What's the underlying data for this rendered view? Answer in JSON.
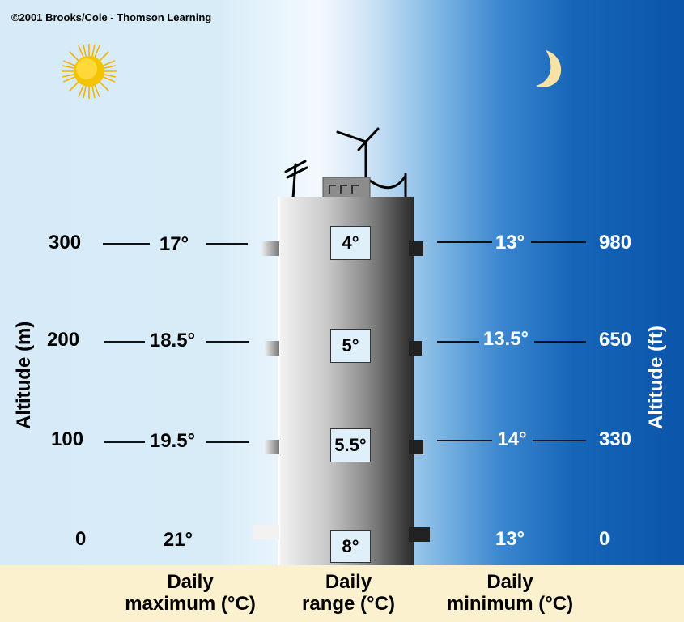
{
  "copyright": "©2001 Brooks/Cole - Thomson Learning",
  "axis": {
    "left_title": "Altitude (m)",
    "right_title": "Altitude (ft)"
  },
  "rows": [
    {
      "alt_m": "300",
      "max": "17°",
      "range": "4°",
      "min": "13°",
      "alt_ft": "980"
    },
    {
      "alt_m": "200",
      "max": "18.5°",
      "range": "5°",
      "min": "13.5°",
      "alt_ft": "650"
    },
    {
      "alt_m": "100",
      "max": "19.5°",
      "range": "5.5°",
      "min": "14°",
      "alt_ft": "330"
    },
    {
      "alt_m": "0",
      "max": "21°",
      "range": "8°",
      "min": "13°",
      "alt_ft": "0"
    }
  ],
  "columns": {
    "max": [
      "Daily",
      "maximum (°C)"
    ],
    "range": [
      "Daily",
      "range (°C)"
    ],
    "min": [
      "Daily",
      "minimum (°C)"
    ]
  },
  "icons": {
    "day": "sun-icon",
    "night": "crescent-moon-icon"
  },
  "colors": {
    "night_sky": "#0b55aa",
    "day_sky": "#d6eaf7",
    "sun": "#f5c400",
    "moon": "#f8e3a6",
    "footer": "#fcf1cf"
  }
}
